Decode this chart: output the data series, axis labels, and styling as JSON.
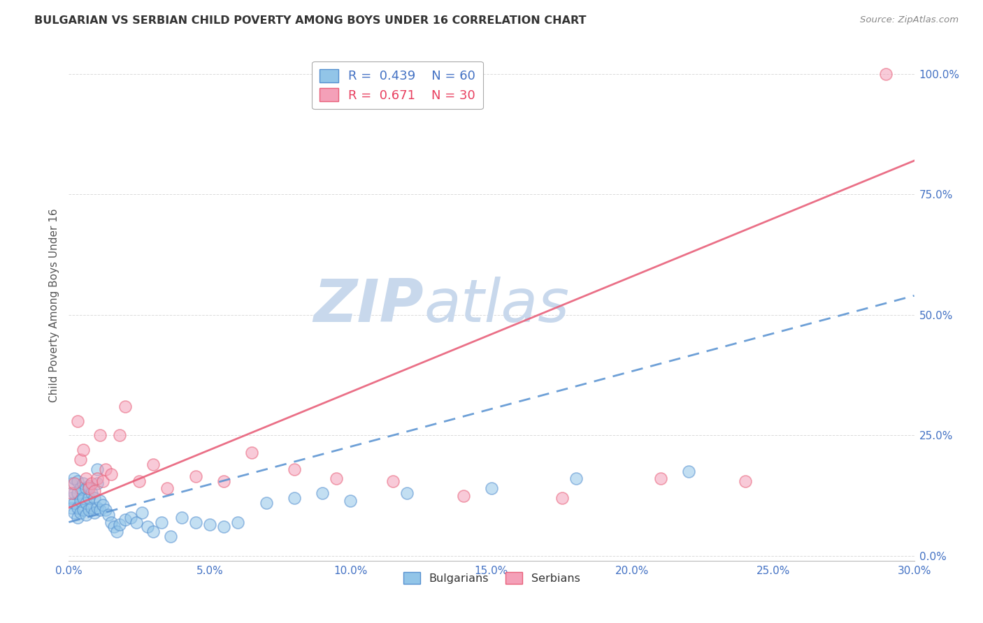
{
  "title": "BULGARIAN VS SERBIAN CHILD POVERTY AMONG BOYS UNDER 16 CORRELATION CHART",
  "source": "Source: ZipAtlas.com",
  "ylabel": "Child Poverty Among Boys Under 16",
  "xlim": [
    0.0,
    0.3
  ],
  "ylim": [
    -0.01,
    1.05
  ],
  "xlabel_ticks": [
    "0.0%",
    "5.0%",
    "10.0%",
    "15.0%",
    "20.0%",
    "25.0%",
    "30.0%"
  ],
  "xlabel_vals": [
    0.0,
    0.05,
    0.1,
    0.15,
    0.2,
    0.25,
    0.3
  ],
  "ylabel_ticks": [
    "100.0%",
    "75.0%",
    "50.0%",
    "25.0%",
    "0.0%"
  ],
  "ylabel_vals": [
    1.0,
    0.75,
    0.5,
    0.25,
    0.0
  ],
  "bulgarian_R": 0.439,
  "bulgarian_N": 60,
  "serbian_R": 0.671,
  "serbian_N": 30,
  "bulgarian_color": "#92C5E8",
  "serbian_color": "#F4A0B8",
  "bulgarian_line_color": "#5590D0",
  "serbian_line_color": "#E8607A",
  "watermark_zip": "ZIP",
  "watermark_atlas": "atlas",
  "watermark_color": "#C8D8EC",
  "bg_color": "#FFFFFF",
  "grid_color": "#CCCCCC",
  "bulgarians_x": [
    0.001,
    0.001,
    0.001,
    0.002,
    0.002,
    0.002,
    0.002,
    0.003,
    0.003,
    0.003,
    0.003,
    0.004,
    0.004,
    0.004,
    0.005,
    0.005,
    0.005,
    0.006,
    0.006,
    0.006,
    0.007,
    0.007,
    0.007,
    0.008,
    0.008,
    0.009,
    0.009,
    0.01,
    0.01,
    0.01,
    0.011,
    0.011,
    0.012,
    0.013,
    0.014,
    0.015,
    0.016,
    0.017,
    0.018,
    0.02,
    0.022,
    0.024,
    0.026,
    0.028,
    0.03,
    0.033,
    0.036,
    0.04,
    0.045,
    0.05,
    0.055,
    0.06,
    0.07,
    0.08,
    0.09,
    0.1,
    0.12,
    0.15,
    0.18,
    0.22
  ],
  "bulgarians_y": [
    0.1,
    0.12,
    0.15,
    0.09,
    0.11,
    0.13,
    0.16,
    0.08,
    0.1,
    0.13,
    0.155,
    0.09,
    0.115,
    0.14,
    0.095,
    0.12,
    0.15,
    0.085,
    0.11,
    0.14,
    0.095,
    0.12,
    0.145,
    0.1,
    0.13,
    0.09,
    0.12,
    0.15,
    0.18,
    0.1,
    0.095,
    0.115,
    0.105,
    0.095,
    0.085,
    0.07,
    0.06,
    0.05,
    0.065,
    0.075,
    0.08,
    0.07,
    0.09,
    0.06,
    0.05,
    0.07,
    0.04,
    0.08,
    0.07,
    0.065,
    0.06,
    0.07,
    0.11,
    0.12,
    0.13,
    0.115,
    0.13,
    0.14,
    0.16,
    0.175
  ],
  "serbians_x": [
    0.001,
    0.002,
    0.003,
    0.004,
    0.005,
    0.006,
    0.007,
    0.008,
    0.009,
    0.01,
    0.011,
    0.012,
    0.013,
    0.015,
    0.018,
    0.02,
    0.025,
    0.03,
    0.035,
    0.045,
    0.055,
    0.065,
    0.08,
    0.095,
    0.115,
    0.14,
    0.175,
    0.21,
    0.24,
    0.29
  ],
  "serbians_y": [
    0.13,
    0.15,
    0.28,
    0.2,
    0.22,
    0.16,
    0.14,
    0.15,
    0.135,
    0.16,
    0.25,
    0.155,
    0.18,
    0.17,
    0.25,
    0.31,
    0.155,
    0.19,
    0.14,
    0.165,
    0.155,
    0.215,
    0.18,
    0.16,
    0.155,
    0.125,
    0.12,
    0.16,
    0.155,
    1.0
  ],
  "b_line_x0": 0.0,
  "b_line_y0": 0.07,
  "b_line_x1": 0.3,
  "b_line_y1": 0.54,
  "s_line_x0": 0.0,
  "s_line_y0": 0.1,
  "s_line_x1": 0.3,
  "s_line_y1": 0.82
}
